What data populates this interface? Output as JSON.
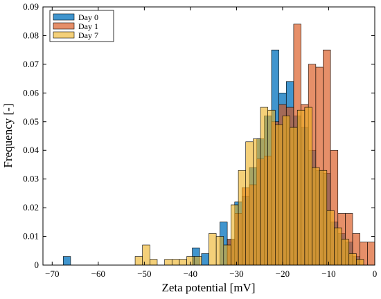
{
  "chart_data": {
    "type": "bar",
    "xlabel": "Zeta potential [mV]",
    "ylabel": "Frequency [-]",
    "xlim": [
      -72,
      0
    ],
    "ylim": [
      0,
      0.09
    ],
    "xticks": [
      -70,
      -60,
      -50,
      -40,
      -30,
      -20,
      -10,
      0
    ],
    "xtick_labels": [
      "−70",
      "−60",
      "−50",
      "−40",
      "−30",
      "−20",
      "−10",
      "0"
    ],
    "yticks": [
      0,
      0.01,
      0.02,
      0.03,
      0.04,
      0.05,
      0.06,
      0.07,
      0.08,
      0.09
    ],
    "ytick_labels": [
      "0",
      "0.01",
      "0.02",
      "0.03",
      "0.04",
      "0.05",
      "0.06",
      "0.07",
      "0.08",
      "0.09"
    ],
    "bin_width": 1.6,
    "legend_position": "top-left",
    "series": [
      {
        "name": "Day 0",
        "color": "#0072BD",
        "bins": [
          [
            -67.6,
            0.003
          ],
          [
            -39.6,
            0.006
          ],
          [
            -37.6,
            0.004
          ],
          [
            -33.6,
            0.015
          ],
          [
            -32.0,
            0.009
          ],
          [
            -30.4,
            0.022
          ],
          [
            -28.8,
            0.024
          ],
          [
            -27.2,
            0.034
          ],
          [
            -25.6,
            0.044
          ],
          [
            -24.0,
            0.052
          ],
          [
            -22.4,
            0.075
          ],
          [
            -20.8,
            0.06
          ],
          [
            -19.2,
            0.064
          ],
          [
            -17.6,
            0.052
          ],
          [
            -16.0,
            0.048
          ],
          [
            -14.4,
            0.04
          ],
          [
            -12.8,
            0.033
          ],
          [
            -11.2,
            0.032
          ],
          [
            -9.6,
            0.015
          ],
          [
            -8.0,
            0.011
          ],
          [
            -6.4,
            0.008
          ],
          [
            -4.8,
            0.003
          ]
        ]
      },
      {
        "name": "Day 1",
        "color": "#D95319",
        "bins": [
          [
            -32.0,
            0.009
          ],
          [
            -30.4,
            0.018
          ],
          [
            -28.8,
            0.027
          ],
          [
            -27.2,
            0.028
          ],
          [
            -25.6,
            0.037
          ],
          [
            -24.0,
            0.038
          ],
          [
            -22.4,
            0.05
          ],
          [
            -20.8,
            0.056
          ],
          [
            -19.2,
            0.055
          ],
          [
            -17.6,
            0.084
          ],
          [
            -16.0,
            0.056
          ],
          [
            -14.4,
            0.07
          ],
          [
            -12.8,
            0.069
          ],
          [
            -11.2,
            0.075
          ],
          [
            -9.6,
            0.04
          ],
          [
            -8.0,
            0.018
          ],
          [
            -6.4,
            0.018
          ],
          [
            -4.8,
            0.011
          ],
          [
            -3.2,
            0.008
          ],
          [
            -1.6,
            0.008
          ]
        ]
      },
      {
        "name": "Day 7",
        "color": "#EDB120",
        "bins": [
          [
            -52.0,
            0.003
          ],
          [
            -50.4,
            0.007
          ],
          [
            -48.8,
            0.002
          ],
          [
            -45.6,
            0.002
          ],
          [
            -44.0,
            0.002
          ],
          [
            -42.4,
            0.002
          ],
          [
            -40.8,
            0.003
          ],
          [
            -39.2,
            0.003
          ],
          [
            -36.0,
            0.011
          ],
          [
            -34.4,
            0.01
          ],
          [
            -32.8,
            0.007
          ],
          [
            -31.2,
            0.021
          ],
          [
            -29.6,
            0.033
          ],
          [
            -28.0,
            0.043
          ],
          [
            -26.4,
            0.044
          ],
          [
            -24.8,
            0.055
          ],
          [
            -23.2,
            0.054
          ],
          [
            -21.6,
            0.049
          ],
          [
            -20.0,
            0.052
          ],
          [
            -18.4,
            0.048
          ],
          [
            -16.8,
            0.054
          ],
          [
            -15.2,
            0.055
          ],
          [
            -13.6,
            0.034
          ],
          [
            -12.0,
            0.033
          ],
          [
            -10.4,
            0.019
          ],
          [
            -8.8,
            0.013
          ],
          [
            -7.2,
            0.009
          ],
          [
            -5.6,
            0.004
          ],
          [
            -4.0,
            0.002
          ]
        ]
      }
    ]
  }
}
